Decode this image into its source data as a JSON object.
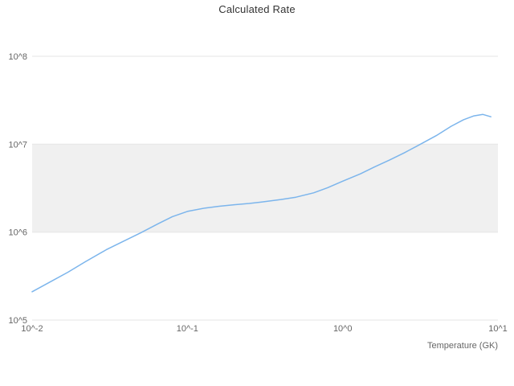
{
  "title": "Calculated Rate",
  "chart_data": {
    "type": "line",
    "title": "Calculated Rate",
    "xlabel": "Temperature (GK)",
    "ylabel": "",
    "x_scale": "log",
    "y_scale": "log",
    "xlim": [
      0.01,
      10
    ],
    "ylim": [
      100000,
      100000000
    ],
    "x_ticks": [
      0.01,
      0.1,
      1,
      10
    ],
    "x_tick_labels": [
      "10^-2",
      "10^-1",
      "10^0",
      "10^1"
    ],
    "y_ticks": [
      100000,
      1000000,
      10000000,
      100000000
    ],
    "y_tick_labels": [
      "10^5",
      "10^6",
      "10^7",
      "10^8"
    ],
    "grid": true,
    "legend": "none",
    "plot_band": {
      "from": 1000000,
      "to": 10000000,
      "color": "#f0f0f0"
    },
    "colors": {
      "line": "#7cb5ec",
      "band": "#f0f0f0",
      "grid": "#e6e6e6",
      "title": "#333333",
      "tick": "#666666",
      "background": "#ffffff"
    },
    "series": [
      {
        "name": "Calculated Rate",
        "color": "#7cb5ec",
        "points": [
          [
            0.01,
            210000
          ],
          [
            0.013,
            270000
          ],
          [
            0.017,
            350000
          ],
          [
            0.022,
            460000
          ],
          [
            0.03,
            630000
          ],
          [
            0.04,
            810000
          ],
          [
            0.05,
            980000
          ],
          [
            0.065,
            1250000
          ],
          [
            0.08,
            1500000
          ],
          [
            0.1,
            1720000
          ],
          [
            0.13,
            1880000
          ],
          [
            0.16,
            1970000
          ],
          [
            0.2,
            2050000
          ],
          [
            0.25,
            2120000
          ],
          [
            0.3,
            2200000
          ],
          [
            0.4,
            2350000
          ],
          [
            0.5,
            2500000
          ],
          [
            0.65,
            2800000
          ],
          [
            0.8,
            3200000
          ],
          [
            1.0,
            3800000
          ],
          [
            1.3,
            4600000
          ],
          [
            1.6,
            5500000
          ],
          [
            2.0,
            6600000
          ],
          [
            2.5,
            8000000
          ],
          [
            3.0,
            9500000
          ],
          [
            4.0,
            12500000
          ],
          [
            5.0,
            16000000
          ],
          [
            6.0,
            19000000
          ],
          [
            7.0,
            21000000
          ],
          [
            8.0,
            21800000
          ],
          [
            9.0,
            20500000
          ]
        ]
      }
    ]
  }
}
